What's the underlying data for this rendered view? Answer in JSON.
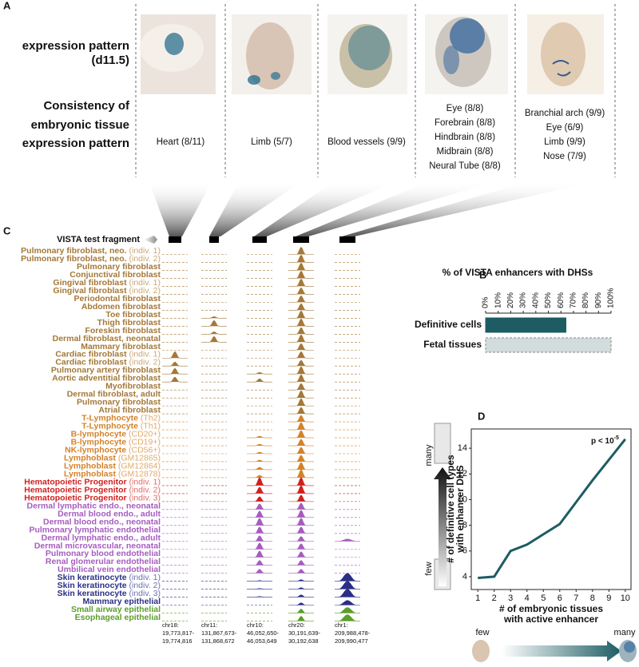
{
  "panel_a": {
    "label": "A",
    "row_labels": [
      [
        "expression pattern",
        "(d11.5)"
      ],
      [
        "Consistency of",
        "embryonic tissue",
        "expression pattern"
      ]
    ],
    "columns": [
      [
        "Heart (8/11)"
      ],
      [
        "Limb (5/7)"
      ],
      [
        "Blood vessels (9/9)"
      ],
      [
        "Eye (8/8)",
        "Forebrain (8/8)",
        "Hindbrain (8/8)",
        "Midbrain (8/8)",
        "Neural Tube (8/8)"
      ],
      [
        "Branchial arch (9/9)",
        "Eye (6/9)",
        "Limb (9/9)",
        "Nose (7/9)"
      ]
    ]
  },
  "panel_c": {
    "label": "C",
    "fragment_label": "VISTA test fragment",
    "loci": [
      [
        "chr18:",
        "19,773,817-",
        "19,774,816"
      ],
      [
        "chr11:",
        "131,867,673-",
        "131,868,672"
      ],
      [
        "chr10:",
        "46,052,650-",
        "46,053,649"
      ],
      [
        "chr20:",
        "30,191,639-",
        "30,192,638"
      ],
      [
        "chr1:",
        "209,988,478-",
        "209,990,477"
      ]
    ],
    "groups": [
      {
        "color": "#a47838",
        "note_color": "#c9a878",
        "rows": [
          {
            "name": "Pulmonary fibroblast, neo.",
            "note": "(indiv. 1)",
            "peaks": [
              0,
              0,
              0,
              0.9,
              0
            ]
          },
          {
            "name": "Pulmonary fibroblast, neo.",
            "note": "(indiv. 2)",
            "peaks": [
              0,
              0,
              0,
              0.9,
              0
            ]
          },
          {
            "name": "Pulmonary fibroblast",
            "peaks": [
              0,
              0,
              0,
              0.9,
              0
            ]
          },
          {
            "name": "Conjunctival fibroblast",
            "peaks": [
              0,
              0,
              0,
              0.9,
              0
            ]
          },
          {
            "name": "Gingival fibroblast",
            "note": "(indiv. 1)",
            "peaks": [
              0,
              0,
              0,
              0.9,
              0
            ]
          },
          {
            "name": "Gingival fibroblast",
            "note": "(indiv. 2)",
            "peaks": [
              0,
              0,
              0,
              0.8,
              0
            ]
          },
          {
            "name": "Periodontal fibroblast",
            "peaks": [
              0,
              0,
              0,
              0.8,
              0
            ]
          },
          {
            "name": "Abdomen fibroblast",
            "peaks": [
              0,
              0,
              0,
              0.8,
              0
            ]
          },
          {
            "name": "Toe fibroblast",
            "peaks": [
              0,
              0.2,
              0,
              0.9,
              0
            ]
          },
          {
            "name": "Thigh fibroblast",
            "peaks": [
              0,
              0.7,
              0,
              0.9,
              0
            ]
          },
          {
            "name": "Foreskin fibroblast",
            "peaks": [
              0,
              0.3,
              0,
              0.8,
              0
            ]
          },
          {
            "name": "Dermal fibroblast, neonatal",
            "peaks": [
              0,
              0.7,
              0,
              0.9,
              0
            ]
          },
          {
            "name": "Mammary fibroblast",
            "peaks": [
              0,
              0,
              0,
              0.8,
              0
            ]
          },
          {
            "name": "Cardiac fibroblast",
            "note": "(indiv. 1)",
            "peaks": [
              0.8,
              0,
              0,
              0.8,
              0
            ]
          },
          {
            "name": "Cardiac fibroblast",
            "note": "(indiv. 2)",
            "peaks": [
              0.5,
              0,
              0,
              0.7,
              0
            ]
          },
          {
            "name": "Pulmonary artery fibroblast",
            "peaks": [
              0.7,
              0,
              0.2,
              0.9,
              0
            ]
          },
          {
            "name": "Aortic adventitial fibroblast",
            "peaks": [
              0.6,
              0,
              0.4,
              0.9,
              0
            ]
          },
          {
            "name": "Myofibroblast",
            "peaks": [
              0,
              0,
              0,
              0.8,
              0
            ]
          },
          {
            "name": "Dermal fibroblast, adult",
            "peaks": [
              0,
              0,
              0,
              0.9,
              0
            ]
          },
          {
            "name": "Pulmonary fibroblast",
            "peaks": [
              0,
              0,
              0,
              0.9,
              0
            ]
          },
          {
            "name": "Atrial fibroblast",
            "peaks": [
              0,
              0,
              0,
              0.8,
              0
            ]
          }
        ]
      },
      {
        "color": "#d3822a",
        "note_color": "#e2aa6a",
        "rows": [
          {
            "name": "T-Lymphocyte",
            "note": "(Th2)",
            "peaks": [
              0,
              0,
              0,
              0.8,
              0
            ]
          },
          {
            "name": "T-Lymphocyte",
            "note": "(Th1)",
            "peaks": [
              0,
              0,
              0,
              0.9,
              0
            ]
          },
          {
            "name": "B-lymphocyte",
            "note": "(CD20+)",
            "peaks": [
              0,
              0,
              0.2,
              0.9,
              0
            ]
          },
          {
            "name": "B-lymphocyte",
            "note": "(CD19+)",
            "peaks": [
              0,
              0,
              0.2,
              0.8,
              0
            ]
          },
          {
            "name": "NK-lymphocyte",
            "note": "(CD56+)",
            "peaks": [
              0,
              0,
              0.2,
              0.8,
              0
            ]
          },
          {
            "name": "Lymphoblast",
            "note": "(GM12865)",
            "peaks": [
              0,
              0,
              0.2,
              0.8,
              0
            ]
          },
          {
            "name": "Lymphoblast",
            "note": "(GM12864)",
            "peaks": [
              0,
              0,
              0.3,
              0.9,
              0
            ]
          },
          {
            "name": "Lymphoblast",
            "note": "(GM12878)",
            "peaks": [
              0,
              0,
              0.3,
              1,
              0
            ]
          }
        ]
      },
      {
        "color": "#d11f1f",
        "note_color": "#e26a6a",
        "rows": [
          {
            "name": "Hematopoietic Progenitor",
            "note": "(indiv. 1)",
            "peaks": [
              0,
              0,
              1,
              1,
              0
            ]
          },
          {
            "name": "Hematopoietic Progenitor",
            "note": "(indiv. 2)",
            "peaks": [
              0,
              0,
              0.8,
              1,
              0
            ]
          },
          {
            "name": "Hematopoietic Progenitor",
            "note": "(indiv. 3)",
            "peaks": [
              0,
              0,
              0.6,
              0.8,
              0
            ]
          }
        ]
      },
      {
        "color": "#a65cbf",
        "note_color": "#c794d6",
        "rows": [
          {
            "name": "Dermal lymphatic endo., neonatal",
            "peaks": [
              0,
              0,
              0.7,
              0.8,
              0
            ]
          },
          {
            "name": "Dermal blood endo., adult",
            "peaks": [
              0,
              0,
              0.8,
              0.9,
              0
            ]
          },
          {
            "name": "Dermal blood endo., neonatal",
            "peaks": [
              0,
              0,
              0.9,
              0.9,
              0
            ]
          },
          {
            "name": "Pulmonary lymphatic endothelial",
            "peaks": [
              0,
              0,
              0.8,
              0.8,
              0
            ]
          },
          {
            "name": "Dermal lymphatic endo., adult",
            "peaks": [
              0,
              0,
              0.7,
              0.6,
              0.3
            ]
          },
          {
            "name": "Dermal microvascular, neonatal",
            "peaks": [
              0,
              0,
              0.8,
              0.7,
              0
            ]
          },
          {
            "name": "Pulmonary blood endothelial",
            "peaks": [
              0,
              0,
              0.8,
              0.7,
              0
            ]
          },
          {
            "name": "Renal glomerular endothelial",
            "peaks": [
              0,
              0,
              0.6,
              0.6,
              0
            ]
          },
          {
            "name": "Umbilical vein endothelial",
            "peaks": [
              0,
              0,
              0.5,
              0.5,
              0
            ]
          }
        ]
      },
      {
        "color": "#2a2f85",
        "note_color": "#6c70b0",
        "rows": [
          {
            "name": "Skin keratinocyte",
            "note": "(indiv. 1)",
            "peaks": [
              0,
              0,
              0.1,
              0.2,
              1
            ]
          },
          {
            "name": "Skin keratinocyte",
            "note": "(indiv. 2)",
            "peaks": [
              0,
              0,
              0.1,
              0.2,
              1
            ]
          },
          {
            "name": "Skin keratinocyte",
            "note": "(indiv. 3)",
            "peaks": [
              0,
              0,
              0.1,
              0.3,
              1
            ]
          },
          {
            "name": "Mammary epithelial",
            "peaks": [
              0,
              0,
              0,
              0.3,
              0.6
            ]
          }
        ]
      },
      {
        "color": "#5b9e2a",
        "note_color": "#8fc068",
        "rows": [
          {
            "name": "Small airway epithelial",
            "peaks": [
              0,
              0,
              0,
              0.5,
              0.7
            ]
          },
          {
            "name": "Esophageal epithelial",
            "peaks": [
              0,
              0,
              0,
              0.6,
              0.8
            ]
          }
        ]
      }
    ]
  },
  "chart_data": [
    {
      "type": "bar",
      "orientation": "horizontal",
      "label": "B",
      "title": "% of VISTA enhancers with DHSs",
      "categories": [
        "Definitive cells",
        "Fetal tissues"
      ],
      "values": [
        64,
        100
      ],
      "colors": [
        "#1d5c63",
        "#d3dcdc"
      ],
      "xlim": [
        0,
        100
      ],
      "xticks": [
        {
          "value": 0,
          "label": "0%"
        },
        {
          "value": 10,
          "label": "10%"
        },
        {
          "value": 20,
          "label": "20%"
        },
        {
          "value": 30,
          "label": "30%"
        },
        {
          "value": 40,
          "label": "40%"
        },
        {
          "value": 50,
          "label": "50%"
        },
        {
          "value": 60,
          "label": "60%"
        },
        {
          "value": 70,
          "label": "70%"
        },
        {
          "value": 80,
          "label": "80%"
        },
        {
          "value": 90,
          "label": "90%"
        },
        {
          "value": 100,
          "label": "100%"
        }
      ]
    },
    {
      "type": "line",
      "label": "D",
      "x": [
        1,
        2,
        3,
        4,
        5,
        6,
        7,
        8,
        9,
        10
      ],
      "values": [
        3.9,
        4.0,
        6.0,
        6.5,
        7.3,
        8.1,
        9.8,
        11.5,
        13.1,
        14.7
      ],
      "color": "#1d5c63",
      "xlim": [
        0.6,
        10.35
      ],
      "ylim": [
        3,
        15.5
      ],
      "xticks": [
        1,
        2,
        3,
        4,
        5,
        6,
        7,
        8,
        9,
        10
      ],
      "yticks": [
        4,
        6,
        8,
        10,
        12,
        14
      ],
      "xlabel": [
        "# of embryonic tissues",
        "with active enhancer"
      ],
      "ylabel": [
        "# of definitive cell types",
        "with enhancer DHS"
      ],
      "annotation": {
        "text": "p < 10",
        "superscript": "-5"
      },
      "scale_labels": {
        "low": "few",
        "high": "many"
      }
    }
  ]
}
